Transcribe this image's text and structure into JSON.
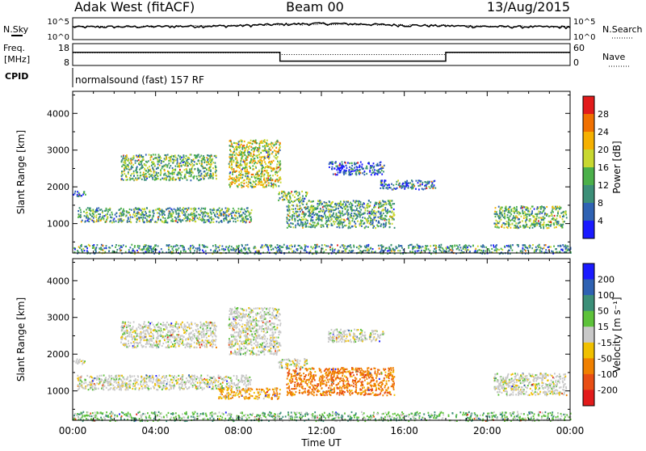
{
  "header": {
    "station": "Adak West (fitACF)",
    "beam": "Beam 00",
    "date": "13/Aug/2015"
  },
  "panel_labels": {
    "nsky": "N.Sky",
    "nsky_ticks": [
      "10^5",
      "10^0"
    ],
    "nsearch": "N.Search",
    "nsearch_ticks": [
      "10^5",
      "10^0"
    ],
    "freq_top": "Freq.",
    "freq_unit": "[MHz]",
    "freq_ticks": [
      "18",
      "8"
    ],
    "nave": "Nave",
    "nave_ticks": [
      "60",
      "0"
    ],
    "cpid": "CPID",
    "cpid_text": "normalsound (fast) 157 RF"
  },
  "colors": {
    "power": [
      "#1a1aff",
      "#2f62b3",
      "#3c8f78",
      "#4bb04a",
      "#c8d830",
      "#f5b000",
      "#f07000",
      "#e21b1b"
    ],
    "velocity": [
      "#1a1aff",
      "#2f62b3",
      "#3c8f78",
      "#5dc23a",
      "#c8c8c8",
      "#f0c000",
      "#f08000",
      "#e84e14",
      "#e21b1b"
    ]
  },
  "chart_data": [
    {
      "type": "line",
      "title": "Adak West (fitACF)",
      "subtitle": "Beam 00",
      "xlabel": "",
      "ylabel": "N.Sky",
      "ylabel_right": "N.Search",
      "scale": "log",
      "ylim": [
        1,
        100000
      ],
      "x": [
        "00:00",
        "04:00",
        "08:00",
        "12:00",
        "16:00",
        "20:00",
        "00:00"
      ],
      "series": [
        {
          "name": "N.Sky",
          "values": [
            800,
            1000,
            1500,
            5000,
            2000,
            1000,
            800
          ]
        },
        {
          "name": "N.Search",
          "values": [
            900,
            1100,
            1600,
            4000,
            2200,
            1100,
            900
          ]
        }
      ]
    },
    {
      "type": "line",
      "xlabel": "",
      "ylabel": "Freq. [MHz]",
      "ylabel_right": "Nave",
      "ylim": [
        8,
        18
      ],
      "x_hours": [
        0,
        10,
        10,
        18,
        18,
        24
      ],
      "series": [
        {
          "name": "Freq.",
          "values": [
            14,
            14,
            10,
            10,
            14,
            14
          ]
        },
        {
          "name": "Nave",
          "values": [
            35,
            35,
            30,
            30,
            35,
            35
          ]
        }
      ]
    },
    {
      "type": "heatmap",
      "ylabel": "Slant Range [km]",
      "ylim": [
        200,
        4600
      ],
      "xlim_hours": [
        0,
        24
      ],
      "x_ticks": [
        "00:00",
        "04:00",
        "08:00",
        "12:00",
        "16:00",
        "20:00",
        "00:00"
      ],
      "y_ticks": [
        "1000",
        "2000",
        "3000",
        "4000"
      ],
      "colorbar_label": "Power [dB]",
      "colorbar_ticks": [
        "4",
        "8",
        "12",
        "16",
        "20",
        "24",
        "28"
      ],
      "clim": [
        0,
        32
      ],
      "regions": [
        {
          "t0": 0.0,
          "t1": 0.6,
          "r0": 1750,
          "r1": 1900,
          "value": 8
        },
        {
          "t0": 0.2,
          "t1": 8.6,
          "r0": 1050,
          "r1": 1450,
          "value": 12
        },
        {
          "t0": 2.3,
          "t1": 6.9,
          "r0": 2200,
          "r1": 2900,
          "value": 14
        },
        {
          "t0": 7.5,
          "t1": 10.0,
          "r0": 2000,
          "r1": 3300,
          "value": 18
        },
        {
          "t0": 9.9,
          "t1": 11.3,
          "r0": 1650,
          "r1": 1900,
          "value": 14
        },
        {
          "t0": 10.3,
          "t1": 15.5,
          "r0": 900,
          "r1": 1650,
          "value": 12
        },
        {
          "t0": 12.3,
          "t1": 15.0,
          "r0": 2350,
          "r1": 2700,
          "value": 6
        },
        {
          "t0": 14.8,
          "t1": 17.5,
          "r0": 1950,
          "r1": 2200,
          "value": 6
        },
        {
          "t0": 20.3,
          "t1": 23.8,
          "r0": 900,
          "r1": 1500,
          "value": 14
        },
        {
          "t0": 0.0,
          "t1": 24.0,
          "r0": 200,
          "r1": 450,
          "value": 10
        }
      ]
    },
    {
      "type": "heatmap",
      "xlabel": "Time UT",
      "ylabel": "Slant Range [km]",
      "ylim": [
        200,
        4600
      ],
      "xlim_hours": [
        0,
        24
      ],
      "x_ticks": [
        "00:00",
        "04:00",
        "08:00",
        "12:00",
        "16:00",
        "20:00",
        "00:00"
      ],
      "y_ticks": [
        "1000",
        "2000",
        "3000",
        "4000"
      ],
      "colorbar_label": "Velocity [m s⁻¹]",
      "colorbar_ticks": [
        "200",
        "100",
        "50",
        "15",
        "-15",
        "-50",
        "-100",
        "-200"
      ],
      "clim": [
        -250,
        250
      ],
      "regions": [
        {
          "t0": 0.0,
          "t1": 0.6,
          "r0": 1750,
          "r1": 1900,
          "value": 0
        },
        {
          "t0": 0.2,
          "t1": 8.6,
          "r0": 1050,
          "r1": 1450,
          "value": 0
        },
        {
          "t0": 2.3,
          "t1": 6.9,
          "r0": 2200,
          "r1": 2900,
          "value": 0
        },
        {
          "t0": 7.5,
          "t1": 10.0,
          "r0": 2000,
          "r1": 3300,
          "value": 0
        },
        {
          "t0": 9.9,
          "t1": 11.3,
          "r0": 1650,
          "r1": 1900,
          "value": 0
        },
        {
          "t0": 7.0,
          "t1": 10.0,
          "r0": 800,
          "r1": 1100,
          "value": -50
        },
        {
          "t0": 10.3,
          "t1": 15.5,
          "r0": 900,
          "r1": 1650,
          "value": -80
        },
        {
          "t0": 12.3,
          "t1": 15.0,
          "r0": 2350,
          "r1": 2700,
          "value": 0
        },
        {
          "t0": 20.3,
          "t1": 23.8,
          "r0": 900,
          "r1": 1500,
          "value": 0
        },
        {
          "t0": 0.0,
          "t1": 24.0,
          "r0": 200,
          "r1": 450,
          "value": 30
        }
      ]
    }
  ]
}
